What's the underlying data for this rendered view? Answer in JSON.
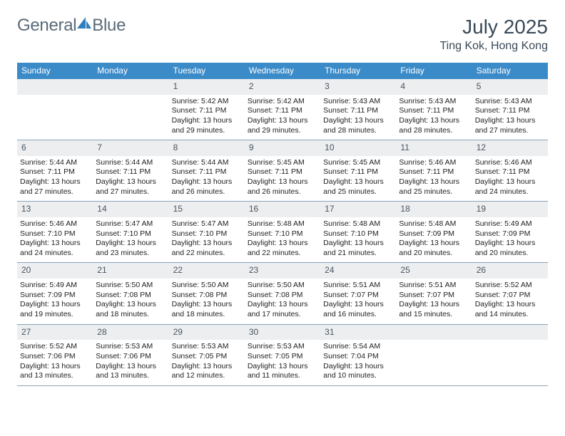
{
  "brand": {
    "text_part1": "General",
    "text_part2": "Blue",
    "logo_color": "#2f7ebf",
    "text_color": "#5a6a78"
  },
  "header": {
    "month_title": "July 2025",
    "location": "Ting Kok, Hong Kong",
    "title_color": "#3a4a58",
    "title_fontsize": 28,
    "location_fontsize": 16
  },
  "style": {
    "weekday_bg": "#3b8bc9",
    "weekday_fg": "#ffffff",
    "daynum_bg": "#eceef0",
    "daynum_fg": "#4a5560",
    "row_border": "#8aa3b8",
    "body_text_color": "#222222",
    "body_fontsize": 10.5,
    "weekday_fontsize": 12,
    "daynum_fontsize": 12
  },
  "weekdays": [
    "Sunday",
    "Monday",
    "Tuesday",
    "Wednesday",
    "Thursday",
    "Friday",
    "Saturday"
  ],
  "weeks": [
    [
      {
        "blank": true
      },
      {
        "blank": true
      },
      {
        "day": "1",
        "sunrise": "Sunrise: 5:42 AM",
        "sunset": "Sunset: 7:11 PM",
        "daylight": "Daylight: 13 hours and 29 minutes."
      },
      {
        "day": "2",
        "sunrise": "Sunrise: 5:42 AM",
        "sunset": "Sunset: 7:11 PM",
        "daylight": "Daylight: 13 hours and 29 minutes."
      },
      {
        "day": "3",
        "sunrise": "Sunrise: 5:43 AM",
        "sunset": "Sunset: 7:11 PM",
        "daylight": "Daylight: 13 hours and 28 minutes."
      },
      {
        "day": "4",
        "sunrise": "Sunrise: 5:43 AM",
        "sunset": "Sunset: 7:11 PM",
        "daylight": "Daylight: 13 hours and 28 minutes."
      },
      {
        "day": "5",
        "sunrise": "Sunrise: 5:43 AM",
        "sunset": "Sunset: 7:11 PM",
        "daylight": "Daylight: 13 hours and 27 minutes."
      }
    ],
    [
      {
        "day": "6",
        "sunrise": "Sunrise: 5:44 AM",
        "sunset": "Sunset: 7:11 PM",
        "daylight": "Daylight: 13 hours and 27 minutes."
      },
      {
        "day": "7",
        "sunrise": "Sunrise: 5:44 AM",
        "sunset": "Sunset: 7:11 PM",
        "daylight": "Daylight: 13 hours and 27 minutes."
      },
      {
        "day": "8",
        "sunrise": "Sunrise: 5:44 AM",
        "sunset": "Sunset: 7:11 PM",
        "daylight": "Daylight: 13 hours and 26 minutes."
      },
      {
        "day": "9",
        "sunrise": "Sunrise: 5:45 AM",
        "sunset": "Sunset: 7:11 PM",
        "daylight": "Daylight: 13 hours and 26 minutes."
      },
      {
        "day": "10",
        "sunrise": "Sunrise: 5:45 AM",
        "sunset": "Sunset: 7:11 PM",
        "daylight": "Daylight: 13 hours and 25 minutes."
      },
      {
        "day": "11",
        "sunrise": "Sunrise: 5:46 AM",
        "sunset": "Sunset: 7:11 PM",
        "daylight": "Daylight: 13 hours and 25 minutes."
      },
      {
        "day": "12",
        "sunrise": "Sunrise: 5:46 AM",
        "sunset": "Sunset: 7:11 PM",
        "daylight": "Daylight: 13 hours and 24 minutes."
      }
    ],
    [
      {
        "day": "13",
        "sunrise": "Sunrise: 5:46 AM",
        "sunset": "Sunset: 7:10 PM",
        "daylight": "Daylight: 13 hours and 24 minutes."
      },
      {
        "day": "14",
        "sunrise": "Sunrise: 5:47 AM",
        "sunset": "Sunset: 7:10 PM",
        "daylight": "Daylight: 13 hours and 23 minutes."
      },
      {
        "day": "15",
        "sunrise": "Sunrise: 5:47 AM",
        "sunset": "Sunset: 7:10 PM",
        "daylight": "Daylight: 13 hours and 22 minutes."
      },
      {
        "day": "16",
        "sunrise": "Sunrise: 5:48 AM",
        "sunset": "Sunset: 7:10 PM",
        "daylight": "Daylight: 13 hours and 22 minutes."
      },
      {
        "day": "17",
        "sunrise": "Sunrise: 5:48 AM",
        "sunset": "Sunset: 7:10 PM",
        "daylight": "Daylight: 13 hours and 21 minutes."
      },
      {
        "day": "18",
        "sunrise": "Sunrise: 5:48 AM",
        "sunset": "Sunset: 7:09 PM",
        "daylight": "Daylight: 13 hours and 20 minutes."
      },
      {
        "day": "19",
        "sunrise": "Sunrise: 5:49 AM",
        "sunset": "Sunset: 7:09 PM",
        "daylight": "Daylight: 13 hours and 20 minutes."
      }
    ],
    [
      {
        "day": "20",
        "sunrise": "Sunrise: 5:49 AM",
        "sunset": "Sunset: 7:09 PM",
        "daylight": "Daylight: 13 hours and 19 minutes."
      },
      {
        "day": "21",
        "sunrise": "Sunrise: 5:50 AM",
        "sunset": "Sunset: 7:08 PM",
        "daylight": "Daylight: 13 hours and 18 minutes."
      },
      {
        "day": "22",
        "sunrise": "Sunrise: 5:50 AM",
        "sunset": "Sunset: 7:08 PM",
        "daylight": "Daylight: 13 hours and 18 minutes."
      },
      {
        "day": "23",
        "sunrise": "Sunrise: 5:50 AM",
        "sunset": "Sunset: 7:08 PM",
        "daylight": "Daylight: 13 hours and 17 minutes."
      },
      {
        "day": "24",
        "sunrise": "Sunrise: 5:51 AM",
        "sunset": "Sunset: 7:07 PM",
        "daylight": "Daylight: 13 hours and 16 minutes."
      },
      {
        "day": "25",
        "sunrise": "Sunrise: 5:51 AM",
        "sunset": "Sunset: 7:07 PM",
        "daylight": "Daylight: 13 hours and 15 minutes."
      },
      {
        "day": "26",
        "sunrise": "Sunrise: 5:52 AM",
        "sunset": "Sunset: 7:07 PM",
        "daylight": "Daylight: 13 hours and 14 minutes."
      }
    ],
    [
      {
        "day": "27",
        "sunrise": "Sunrise: 5:52 AM",
        "sunset": "Sunset: 7:06 PM",
        "daylight": "Daylight: 13 hours and 13 minutes."
      },
      {
        "day": "28",
        "sunrise": "Sunrise: 5:53 AM",
        "sunset": "Sunset: 7:06 PM",
        "daylight": "Daylight: 13 hours and 13 minutes."
      },
      {
        "day": "29",
        "sunrise": "Sunrise: 5:53 AM",
        "sunset": "Sunset: 7:05 PM",
        "daylight": "Daylight: 13 hours and 12 minutes."
      },
      {
        "day": "30",
        "sunrise": "Sunrise: 5:53 AM",
        "sunset": "Sunset: 7:05 PM",
        "daylight": "Daylight: 13 hours and 11 minutes."
      },
      {
        "day": "31",
        "sunrise": "Sunrise: 5:54 AM",
        "sunset": "Sunset: 7:04 PM",
        "daylight": "Daylight: 13 hours and 10 minutes."
      },
      {
        "blank": true
      },
      {
        "blank": true
      }
    ]
  ]
}
